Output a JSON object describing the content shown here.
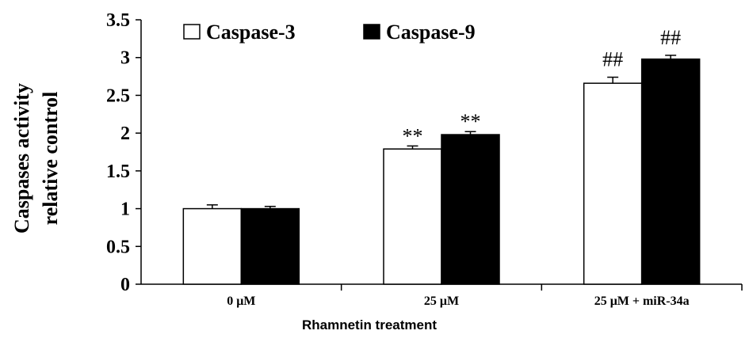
{
  "chart_data": {
    "type": "bar",
    "categories": [
      "0 μM",
      "25 μM",
      "25 μM + miR-34a"
    ],
    "series": [
      {
        "name": "Caspase-3",
        "values": [
          1.0,
          1.79,
          2.66
        ],
        "errors": [
          0.05,
          0.04,
          0.08
        ],
        "color": "#ffffff"
      },
      {
        "name": "Caspase-9",
        "values": [
          1.0,
          1.98,
          2.98
        ],
        "errors": [
          0.03,
          0.04,
          0.05
        ],
        "color": "#000000"
      }
    ],
    "annotations": [
      {
        "category": 1,
        "series": 0,
        "text": "**"
      },
      {
        "category": 1,
        "series": 1,
        "text": "**"
      },
      {
        "category": 2,
        "series": 0,
        "text": "##"
      },
      {
        "category": 2,
        "series": 1,
        "text": "##"
      }
    ],
    "ylabel_line1": "Caspases activity",
    "ylabel_line2": "relative control",
    "xlabel": "Rhamnetin treatment",
    "ylim": [
      0,
      3.5
    ],
    "yticks": [
      "0",
      "0.5",
      "1",
      "1.5",
      "2",
      "2.5",
      "3",
      "3.5"
    ],
    "grid": false,
    "legend_position": "top-left"
  }
}
